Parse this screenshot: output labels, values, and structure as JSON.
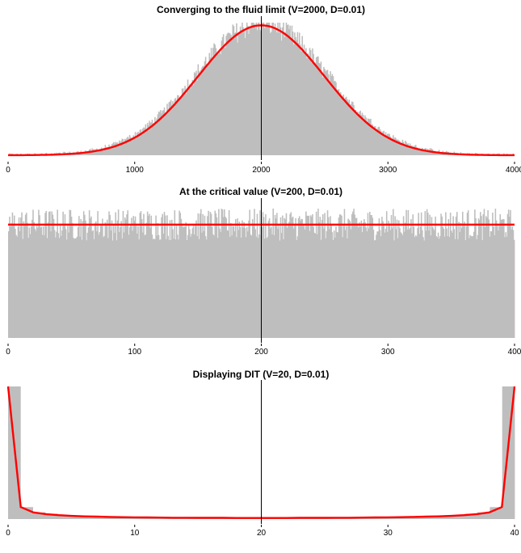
{
  "chart_data": [
    {
      "type": "bar",
      "subtype": "histogram_with_curve",
      "title": "Converging to the fluid limit (V=2000, D=0.01)",
      "xlabel": "",
      "ylabel": "",
      "xlim": [
        0,
        4000
      ],
      "xticks": [
        0,
        1000,
        2000,
        3000,
        4000
      ],
      "tick_labels": [
        "0",
        "1000",
        "2000",
        "3000",
        "4000"
      ],
      "vline_x": 2000,
      "histogram": {
        "color": "#bebebe",
        "x_range": [
          0,
          4000
        ],
        "shape": "gaussian",
        "center": 2000,
        "sd": 520,
        "peak_fraction": 1.0
      },
      "curve": {
        "color": "#ff0000",
        "shape": "gaussian",
        "center": 2000,
        "sd": 500,
        "peak_fraction": 0.98
      },
      "grid": false,
      "legend": "none"
    },
    {
      "type": "bar",
      "subtype": "histogram_with_curve",
      "title": "At the critical value (V=200, D=0.01)",
      "xlabel": "",
      "ylabel": "",
      "xlim": [
        0,
        400
      ],
      "xticks": [
        0,
        100,
        200,
        300,
        400
      ],
      "tick_labels": [
        "0",
        "100",
        "200",
        "300",
        "400"
      ],
      "vline_x": 200,
      "histogram": {
        "color": "#bebebe",
        "x_range": [
          0,
          400
        ],
        "shape": "flat",
        "level_fraction": 0.85,
        "noise_fraction": 0.12
      },
      "curve": {
        "color": "#ff0000",
        "shape": "flat",
        "level_fraction": 0.85
      },
      "grid": false,
      "legend": "none"
    },
    {
      "type": "bar",
      "subtype": "histogram_with_curve",
      "title": "Displaying DIT (V=20, D=0.01)",
      "xlabel": "",
      "ylabel": "",
      "xlim": [
        0,
        40
      ],
      "xticks": [
        0,
        10,
        20,
        30,
        40
      ],
      "tick_labels": [
        "0",
        "10",
        "20",
        "30",
        "40"
      ],
      "vline_x": 20,
      "histogram": {
        "color": "#bebebe",
        "x": [
          0,
          1,
          2,
          3,
          4,
          5,
          6,
          7,
          8,
          9,
          10,
          11,
          12,
          13,
          14,
          15,
          16,
          17,
          18,
          19,
          20,
          21,
          22,
          23,
          24,
          25,
          26,
          27,
          28,
          29,
          30,
          31,
          32,
          33,
          34,
          35,
          36,
          37,
          38,
          39,
          40
        ],
        "values": [
          1.0,
          0.09,
          0.05,
          0.04,
          0.03,
          0.026,
          0.022,
          0.02,
          0.018,
          0.016,
          0.015,
          0.014,
          0.013,
          0.012,
          0.011,
          0.011,
          0.01,
          0.01,
          0.01,
          0.01,
          0.01,
          0.01,
          0.01,
          0.01,
          0.01,
          0.011,
          0.011,
          0.012,
          0.013,
          0.014,
          0.015,
          0.016,
          0.018,
          0.02,
          0.022,
          0.026,
          0.03,
          0.04,
          0.05,
          0.09,
          1.0
        ]
      },
      "curve": {
        "color": "#ff0000",
        "x": [
          0,
          1,
          2,
          3,
          4,
          5,
          6,
          7,
          8,
          9,
          10,
          11,
          12,
          13,
          14,
          15,
          16,
          17,
          18,
          19,
          20,
          21,
          22,
          23,
          24,
          25,
          26,
          27,
          28,
          29,
          30,
          31,
          32,
          33,
          34,
          35,
          36,
          37,
          38,
          39,
          40
        ],
        "y": [
          1.0,
          0.09,
          0.05,
          0.037,
          0.029,
          0.024,
          0.02,
          0.018,
          0.016,
          0.014,
          0.013,
          0.012,
          0.011,
          0.01,
          0.01,
          0.009,
          0.009,
          0.009,
          0.008,
          0.008,
          0.008,
          0.008,
          0.008,
          0.009,
          0.009,
          0.009,
          0.01,
          0.01,
          0.011,
          0.012,
          0.013,
          0.014,
          0.016,
          0.018,
          0.02,
          0.024,
          0.029,
          0.037,
          0.05,
          0.09,
          1.0
        ]
      },
      "grid": false,
      "legend": "none"
    }
  ]
}
